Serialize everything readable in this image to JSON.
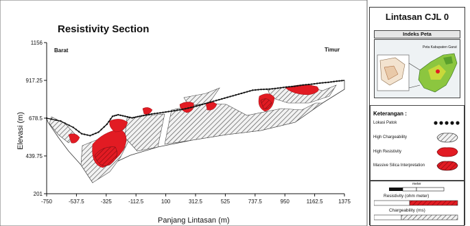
{
  "chart_data": {
    "type": "area",
    "title": "Resistivity Section",
    "xlabel": "Panjang Lintasan (m)",
    "ylabel": "Elevasi (m)",
    "xlim": [
      -750,
      1375
    ],
    "ylim": [
      201,
      1156
    ],
    "x_ticks": [
      "-750",
      "-537.5",
      "-325",
      "-112.5",
      "100",
      "312.5",
      "525",
      "737.5",
      "950",
      "1162.5",
      "1375"
    ],
    "y_ticks": [
      "1156",
      "917.25",
      "678.5",
      "439.75",
      "201"
    ],
    "annotations": [
      "Barat",
      "Timur"
    ],
    "surface_profile": {
      "x": [
        -750,
        -650,
        -560,
        -500,
        -440,
        -380,
        -320,
        -280,
        -240,
        -190,
        -140,
        -100,
        -60,
        0,
        60,
        120,
        180,
        240,
        300,
        360,
        420,
        480,
        540,
        600,
        660,
        720,
        780,
        840,
        900,
        960,
        1020,
        1080,
        1140,
        1200,
        1260,
        1320,
        1375
      ],
      "y": [
        678.5,
        660,
        620,
        580,
        568,
        590,
        640,
        690,
        700,
        690,
        680,
        688,
        695,
        705,
        712,
        720,
        728,
        738,
        750,
        765,
        780,
        795,
        810,
        825,
        840,
        855,
        860,
        862,
        868,
        875,
        880,
        888,
        893,
        900,
        905,
        912,
        917.25
      ]
    },
    "series": [
      {
        "name": "High Chargeability",
        "color": "#9a9a9a"
      },
      {
        "name": "High Resistivity",
        "color": "#e21b23"
      },
      {
        "name": "Massive Silica Interpretation",
        "color": "#5a1014"
      }
    ]
  },
  "sidebar": {
    "title": "Lintasan CJL 0",
    "index_label": "Indeks Peta",
    "inset_caption": "Peta Kabupaten Garut",
    "legend_title": "Keterangan :",
    "legend_items": [
      {
        "label": "Lokasi Patok",
        "symbol": "dots"
      },
      {
        "label": "High Chargeability",
        "symbol": "hatched"
      },
      {
        "label": "High Resistivity",
        "symbol": "red"
      },
      {
        "label": "Massive Silica Interpretation",
        "symbol": "darkred-hatched"
      }
    ],
    "scale_unit": "meter",
    "resistivity_label": "Resistivity (ohm meter)",
    "chargeability_label": "Chargeability (ms)"
  }
}
